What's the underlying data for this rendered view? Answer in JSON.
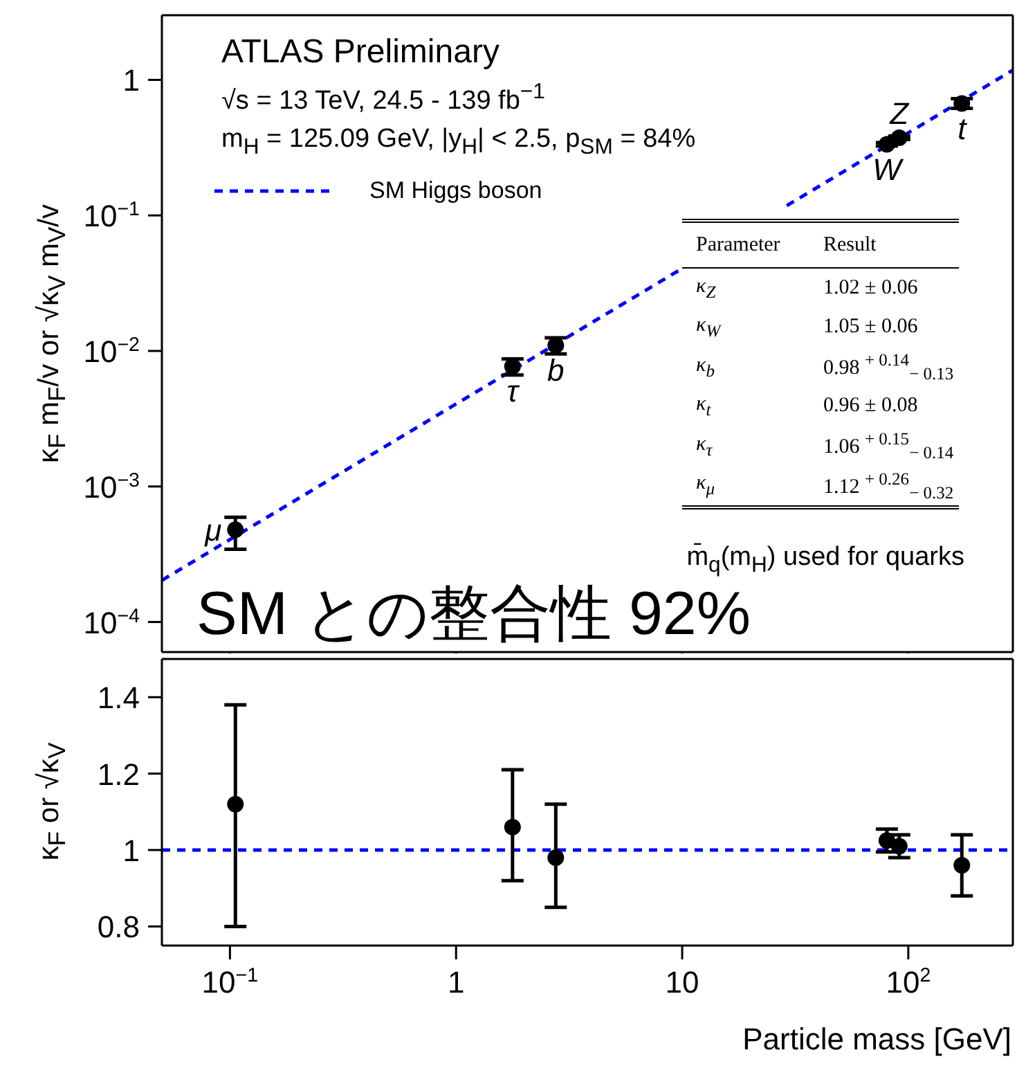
{
  "chart_data": [
    {
      "type": "scatter",
      "title": "ATLAS Preliminary",
      "subtitle": "√s = 13 TeV, 24.5 - 139 fb$^{−1}$",
      "ylabel": "κ$_{F}$ m$_{F}$/v or √κ$_{V}$ m$_{V}$/v",
      "annotations": [
        "m$_{H}$ = 125.09 GeV, |y$_{H}$| < 2.5, p$_{SM}$ = 84%",
        "Parameter",
        "Result",
        "κ$_{Z}$",
        "1.02 ± 0.06",
        "κ$_{W}$",
        "1.05 ± 0.06",
        "κ$_{b}$",
        "0.98 $^{+ 0.14}$$_{− 0.13}$",
        "κ$_{t}$",
        "0.96  ± 0.08",
        "κ$_{τ}$",
        "1.06 $^{+ 0.15}$$_{− 0.14}$",
        "κ$_{μ}$",
        "1.12 $^{+ 0.26}$$_{− 0.32}$",
        "m̄$_{q}$(m$_{H}$) used for quarks",
        "SM との整合性 92%",
        {
          "text": "μ",
          "x": 0.1057,
          "y": 0.00048
        },
        {
          "text": "τ",
          "x": 1.777,
          "y": 0.0077
        },
        {
          "text": "b",
          "x": 2.76,
          "y": 0.011
        },
        {
          "text": "W",
          "x": 80.4,
          "y": 0.335
        },
        {
          "text": "Z",
          "x": 91.2,
          "y": 0.374
        },
        {
          "text": "t",
          "x": 172.5,
          "y": 0.67
        }
      ],
      "series": [
        {
          "name": "SM Higgs boson",
          "type": "line",
          "color": "#0000ff",
          "line_style": "dashed",
          "marker": "none",
          "x": [
            0.05,
            9.8,
            17,
            29,
            290
          ],
          "values": [
            0.000203,
            0.0398,
            null,
            0.118,
            1.18
          ]
        },
        {
          "type": "scatter",
          "color": "#000000",
          "marker": "circle",
          "x": [
            0.1057,
            1.777,
            2.76,
            80.4,
            91.2,
            172.5
          ],
          "values": [
            0.00048,
            0.0077,
            0.011,
            0.335,
            0.374,
            0.67
          ],
          "errors": [
            [
              0.000344,
              0.000593
            ],
            [
              0.00664,
              0.00874
            ],
            [
              0.0095,
              0.0125
            ],
            [
              0.325,
              0.345
            ],
            [
              0.363,
              0.385
            ],
            [
              0.616,
              0.728
            ]
          ]
        }
      ],
      "xlim": [
        0.05,
        290
      ],
      "xticks": [
        {
          "value": 0.1,
          "label": null
        },
        {
          "value": 1,
          "label": null
        },
        {
          "value": 10,
          "label": null
        },
        {
          "value": 100,
          "label": null
        }
      ],
      "ylim": [
        6e-05,
        3
      ],
      "yticks": [
        {
          "value": 0.0001,
          "label": "10$^{−4}$"
        },
        {
          "value": 0.001,
          "label": "10$^{−3}$"
        },
        {
          "value": 0.01,
          "label": "10$^{−2}$"
        },
        {
          "value": 0.1,
          "label": "10$^{−1}$"
        },
        1
      ],
      "log": "xy",
      "tick_labels": "y",
      "legend": "top left",
      "grid": false
    },
    {
      "type": "scatter",
      "xlabel": "Particle mass [GeV]",
      "ylabel": "κ$_{F}$ or √κ$_{V}$",
      "series": [
        {
          "type": "scatter",
          "color": "#000000",
          "marker": "circle",
          "x": [
            0.1057,
            1.777,
            2.76,
            80.4,
            91.2,
            172.5
          ],
          "values": [
            1.12,
            1.06,
            0.98,
            1.025,
            1.01,
            0.96
          ],
          "errors": [
            [
              0.8,
              1.38
            ],
            [
              0.92,
              1.21
            ],
            [
              0.85,
              1.12
            ],
            [
              0.995,
              1.055
            ],
            [
              0.98,
              1.04
            ],
            [
              0.88,
              1.04
            ]
          ]
        }
      ],
      "ref_lines": [
        {
          "axis": "y",
          "value": 1,
          "color": "#0000ff",
          "line_style": "dashed"
        }
      ],
      "xlim": [
        0.05,
        290
      ],
      "xticks": [
        {
          "value": 0.1,
          "label": "10$^{−1}$"
        },
        1,
        10,
        {
          "value": 100,
          "label": "10$^{2}$"
        }
      ],
      "ylim": [
        0.75,
        1.5
      ],
      "yticks": [
        0.8,
        1,
        1.2,
        1.4
      ],
      "log": "x",
      "legend": false,
      "grid": false
    }
  ]
}
